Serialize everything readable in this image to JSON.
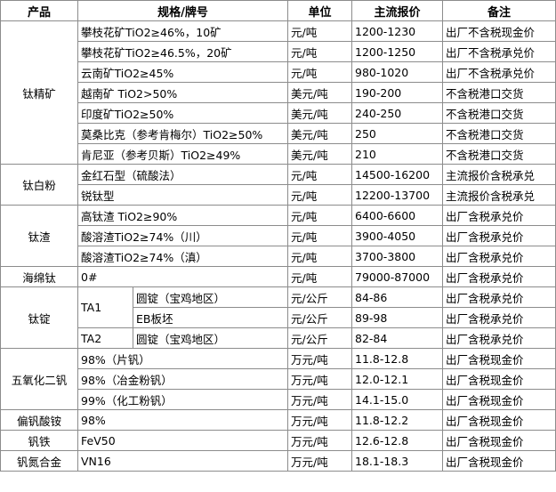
{
  "table": {
    "header": [
      "产品",
      "规格/牌号",
      "单位",
      "主流报价",
      "备注"
    ],
    "groups": [
      {
        "product": "钛精矿",
        "items": [
          {
            "spec": "攀枝花矿TiO2≥46%，10矿",
            "unit": "元/吨",
            "price": "1200-1230",
            "note": "出厂不含税现金价"
          },
          {
            "spec": "攀枝花矿TiO2≥46.5%，20矿",
            "unit": "元/吨",
            "price": "1200-1250",
            "note": "出厂不含税承兑价"
          },
          {
            "spec": "云南矿TiO2≥45%",
            "unit": "元/吨",
            "price": "980-1020",
            "note": "出厂不含税承兑价"
          },
          {
            "spec": "越南矿 TiO2>50%",
            "unit": "美元/吨",
            "price": "190-200",
            "note": "不含税港口交货"
          },
          {
            "spec": "印度矿TiO2≥50%",
            "unit": "美元/吨",
            "price": "240-250",
            "note": "不含税港口交货"
          },
          {
            "spec": "莫桑比克（参考肯梅尔）TiO2≥50%",
            "unit": "美元/吨",
            "price": "250",
            "note": "不含税港口交货"
          },
          {
            "spec": "肯尼亚（参考贝斯）TiO2≥49%",
            "unit": "美元/吨",
            "price": "210",
            "note": "不含税港口交货"
          }
        ]
      },
      {
        "product": "钛白粉",
        "items": [
          {
            "spec": "金红石型（硫酸法）",
            "unit": "元/吨",
            "price": "14500-16200",
            "note": "主流报价含税承兑"
          },
          {
            "spec": "锐钛型",
            "unit": "元/吨",
            "price": "12200-13700",
            "note": "主流报价含税承兑"
          }
        ]
      },
      {
        "product": "钛渣",
        "items": [
          {
            "spec": "高钛渣 TiO2≥90%",
            "unit": "元/吨",
            "price": "6400-6600",
            "note": "出厂含税承兑价"
          },
          {
            "spec": "酸溶渣TiO2≥74%（川）",
            "unit": "元/吨",
            "price": "3900-4050",
            "note": "出厂含税承兑价"
          },
          {
            "spec": "酸溶渣TiO2≥74%（滇）",
            "unit": "元/吨",
            "price": "3700-3800",
            "note": "出厂含税承兑价"
          }
        ]
      },
      {
        "product": "海绵钛",
        "items": [
          {
            "spec": "0#",
            "unit": "元/吨",
            "price": "79000-87000",
            "note": "出厂含税承兑价"
          }
        ]
      },
      {
        "product": "钛锭",
        "grades": [
          {
            "grade": "TA1",
            "items": [
              {
                "spec": "圆锭（宝鸡地区）",
                "unit": "元/公斤",
                "price": "84-86",
                "note": "出厂含税承兑价"
              },
              {
                "spec": "EB板坯",
                "unit": "元/公斤",
                "price": "89-98",
                "note": "出厂含税承兑价"
              }
            ]
          },
          {
            "grade": "TA2",
            "items": [
              {
                "spec": "圆锭（宝鸡地区）",
                "unit": "元/公斤",
                "price": "82-84",
                "note": "出厂含税承兑价"
              }
            ]
          }
        ]
      },
      {
        "product": "五氧化二钒",
        "items": [
          {
            "spec": "98%（片钒）",
            "unit": "万元/吨",
            "price": "11.8-12.8",
            "note": "出厂含税现金价"
          },
          {
            "spec": "98%（冶金粉钒）",
            "unit": "万元/吨",
            "price": "12.0-12.1",
            "note": "出厂含税现金价"
          },
          {
            "spec": "99%（化工粉钒）",
            "unit": "万元/吨",
            "price": "14.1-15.0",
            "note": "出厂含税现金价"
          }
        ]
      },
      {
        "product": "偏钒酸铵",
        "items": [
          {
            "spec": "98%",
            "unit": "万元/吨",
            "price": "11.8-12.2",
            "note": "出厂含税现金价"
          }
        ]
      },
      {
        "product": "钒铁",
        "items": [
          {
            "spec": "FeV50",
            "unit": "万元/吨",
            "price": "12.6-12.8",
            "note": "出厂含税现金价"
          }
        ]
      },
      {
        "product": "钒氮合金",
        "items": [
          {
            "spec": "VN16",
            "unit": "万元/吨",
            "price": "18.1-18.3",
            "note": "出厂含税现金价"
          }
        ]
      }
    ]
  }
}
